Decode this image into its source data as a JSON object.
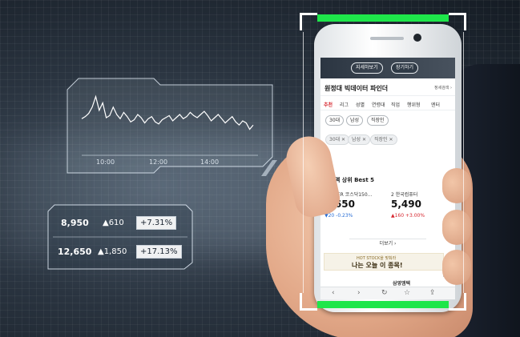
{
  "chart": {
    "x_ticks": [
      "10:00",
      "12:00",
      "14:00"
    ],
    "price_series": [
      0.52,
      0.48,
      0.42,
      0.3,
      0.1,
      0.36,
      0.22,
      0.5,
      0.46,
      0.3,
      0.44,
      0.52,
      0.4,
      0.48,
      0.58,
      0.54,
      0.44,
      0.5,
      0.6,
      0.52,
      0.48,
      0.58,
      0.62,
      0.54,
      0.5,
      0.46,
      0.56,
      0.5,
      0.44,
      0.52,
      0.48,
      0.4,
      0.46,
      0.5,
      0.44,
      0.38,
      0.46,
      0.56,
      0.5,
      0.44,
      0.52,
      0.6,
      0.54,
      0.48,
      0.58,
      0.64,
      0.56,
      0.6,
      0.72,
      0.64
    ]
  },
  "stats": [
    {
      "price": "8,950",
      "change": "▲610",
      "pct": "+7.31%"
    },
    {
      "price": "12,650",
      "change": "▲1,850",
      "pct": "+17.13%"
    }
  ],
  "app": {
    "top_buttons": [
      "지세하보기",
      "장기하기"
    ],
    "title": "원정대 빅데이터 파인더",
    "title_link": "정세검색 ›",
    "menu": [
      "추천",
      "리그",
      "성별",
      "연령대",
      "직업",
      "행위형",
      "엔터"
    ],
    "chips_row1": [
      "30대",
      "남성",
      "직장인"
    ],
    "chips_row2": [
      "30대 ✕",
      "남성 ✕",
      "직장인 ✕"
    ],
    "best_title": "수금액 상위 Best 5",
    "stocks": [
      {
        "rank_name": "1 TIGER 코스닥150...",
        "price": "8,650",
        "change": "▼20 -0.23%",
        "dir": "down"
      },
      {
        "rank_name": "2 한국컴퓨터",
        "price": "5,490",
        "change": "▲160 +3.00%",
        "dir": "up"
      }
    ],
    "more": "더보기 ›",
    "banner_small": "HOT STOCK을 맞춰라",
    "banner_main": "나는 오늘 이 종목!",
    "top_label": "TOP",
    "bottom_item": "삼영엠텍"
  },
  "colors": {
    "scan_green": "#1ee64a",
    "up_red": "#d6262e",
    "down_blue": "#2a6fd6"
  }
}
